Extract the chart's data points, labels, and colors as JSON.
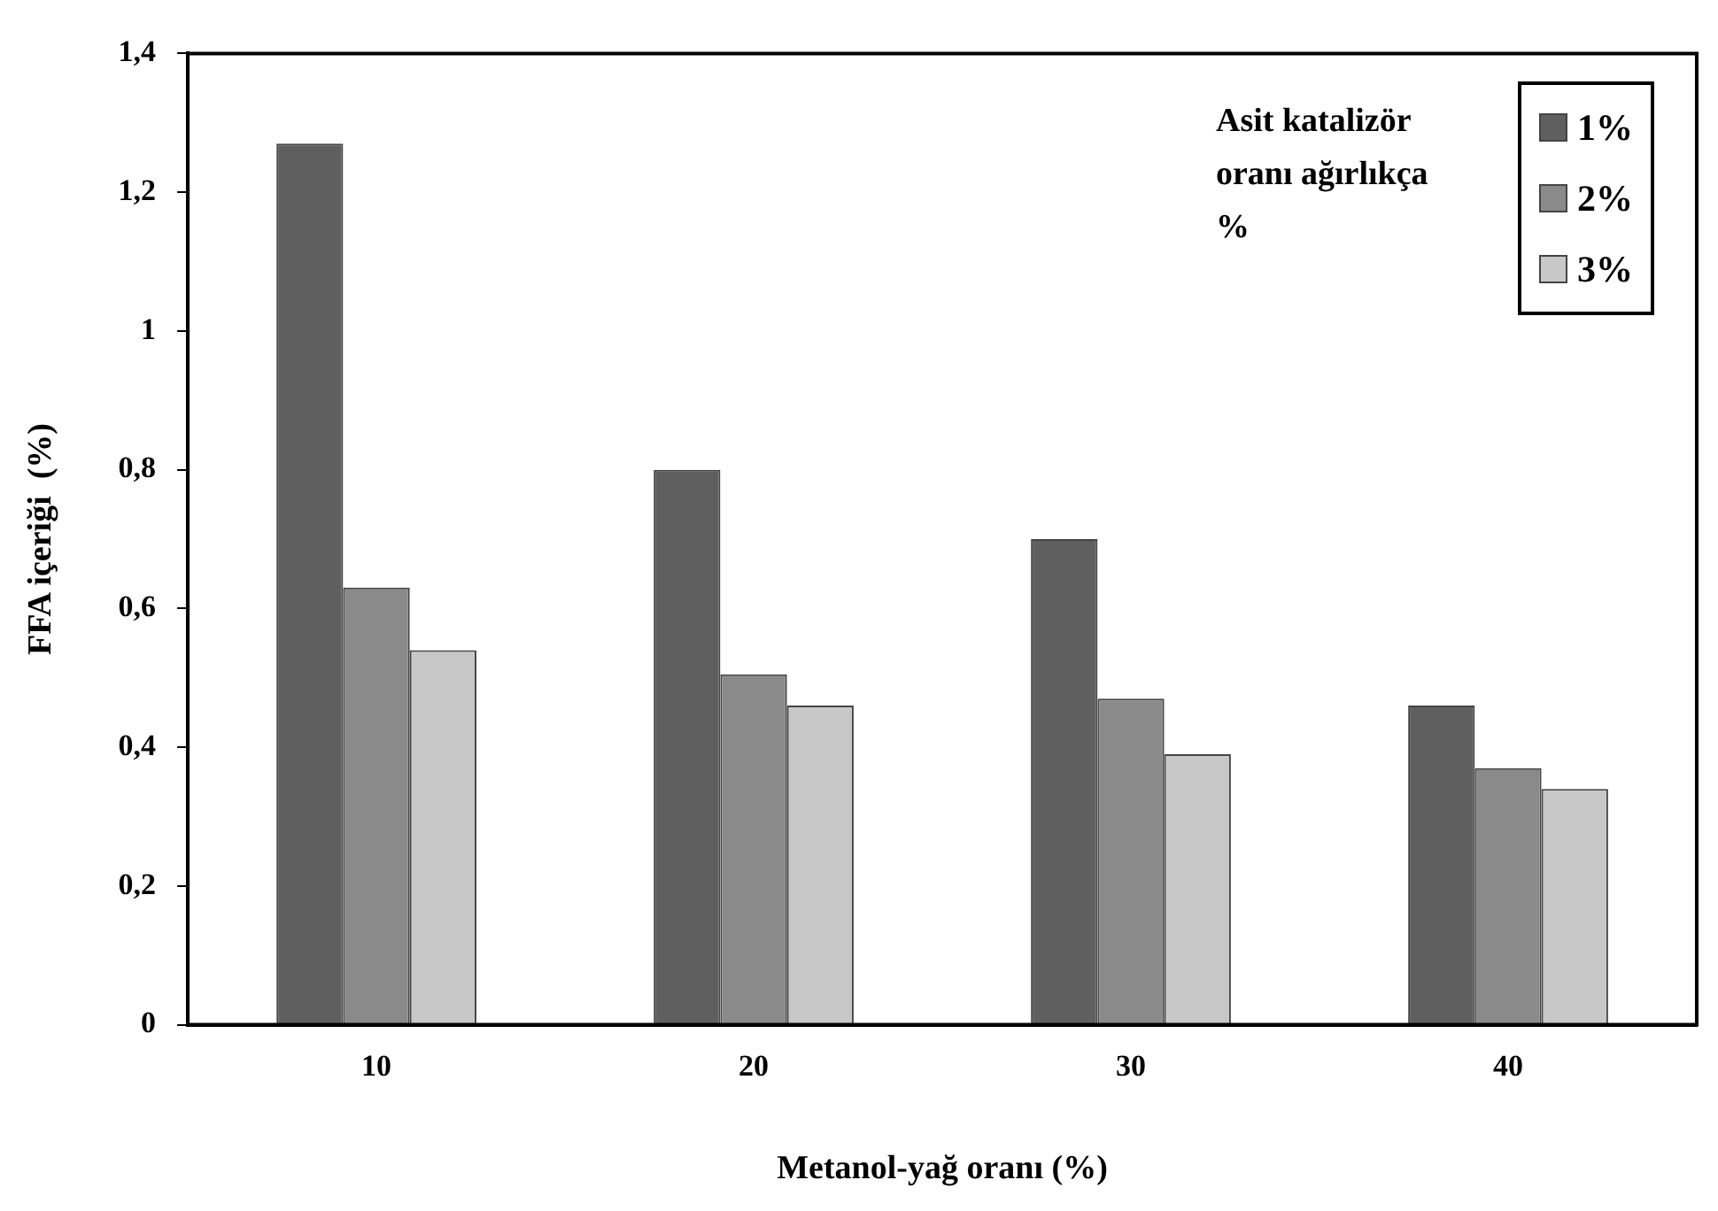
{
  "chart_data": {
    "type": "bar",
    "xlabel": "Metanol-yağ oranı (%)",
    "ylabel": "FFA içeriği  (%)",
    "legend_title": "Asit katalizör oranı ağırlıkça %",
    "categories": [
      "10",
      "20",
      "30",
      "40"
    ],
    "series": [
      {
        "name": "1%",
        "color": "#5f5f5f",
        "values": [
          1.27,
          0.8,
          0.7,
          0.46
        ]
      },
      {
        "name": "2%",
        "color": "#8a8a8a",
        "values": [
          0.63,
          0.505,
          0.47,
          0.37
        ]
      },
      {
        "name": "3%",
        "color": "#c8c8c8",
        "values": [
          0.54,
          0.46,
          0.39,
          0.34
        ]
      }
    ],
    "ylim": [
      0,
      1.4
    ],
    "yticks": [
      0,
      {
        "value": 0.2,
        "label": "0,2"
      },
      {
        "value": 0.4,
        "label": "0,4"
      },
      {
        "value": 0.6,
        "label": "0,6"
      },
      {
        "value": 0.8,
        "label": "0,8"
      },
      1,
      {
        "value": 1.2,
        "label": "1,2"
      },
      {
        "value": 1.4,
        "label": "1,4"
      }
    ],
    "grid": false,
    "legend": "top right"
  }
}
